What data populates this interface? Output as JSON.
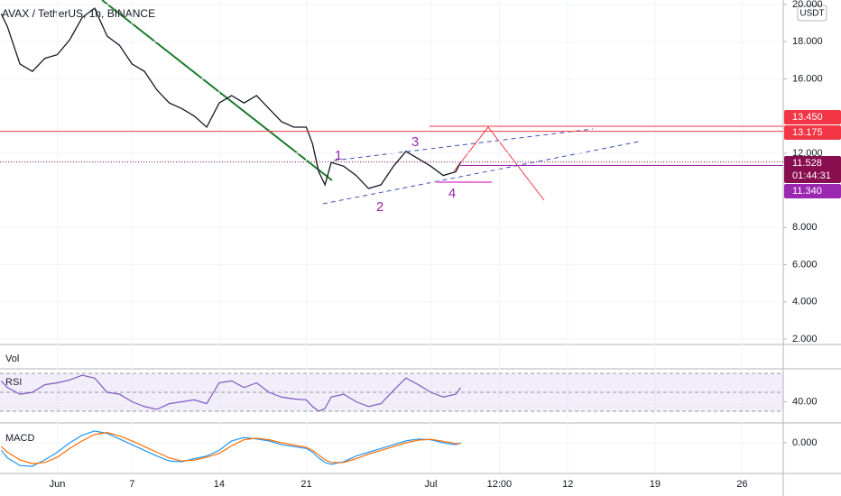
{
  "chart_data": [
    {
      "type": "line",
      "title": "AVAX / TetherUS, 1h, BINANCE",
      "currency": "USDT",
      "x": [
        -3.5,
        -3,
        -2,
        -1,
        0,
        1,
        2,
        3,
        4,
        5,
        6,
        7,
        8,
        9,
        10,
        11,
        12,
        13,
        14,
        15,
        16,
        17,
        18,
        19,
        20,
        21,
        21.5,
        22,
        22.5,
        23,
        24,
        25,
        26,
        27,
        28,
        29,
        30,
        31,
        32,
        33,
        33.4
      ],
      "series": [
        {
          "color": "#131722",
          "values": [
            19.5,
            18.8,
            16.8,
            16.4,
            17.1,
            17.3,
            18.1,
            19.3,
            19.8,
            18.3,
            17.8,
            16.8,
            16.4,
            15.4,
            14.7,
            14.4,
            14.0,
            13.4,
            14.7,
            15.1,
            14.7,
            15.1,
            14.4,
            13.7,
            13.4,
            13.4,
            12.5,
            11.0,
            10.3,
            11.5,
            11.3,
            10.8,
            10.1,
            10.3,
            11.3,
            12.1,
            11.7,
            11.3,
            10.8,
            11.0,
            11.528
          ]
        }
      ],
      "xlim": [
        -3.6,
        59.3
      ],
      "xticks": [
        {
          "value": 1,
          "label": "Jun"
        },
        7,
        14,
        21,
        {
          "value": 31,
          "label": "Jul"
        },
        {
          "value": 36.5,
          "label": "12:00"
        },
        {
          "value": 42,
          "label": "12"
        },
        {
          "value": 49,
          "label": "19"
        },
        {
          "value": 56,
          "label": "26"
        }
      ],
      "ylim": [
        1.71,
        20.24
      ],
      "yticks": [
        {
          "value": 2,
          "label": "2.000"
        },
        {
          "value": 4,
          "label": "4.000"
        },
        {
          "value": 6,
          "label": "6.000"
        },
        {
          "value": 8,
          "label": "8.000"
        },
        {
          "value": 12,
          "label": "12.000"
        },
        {
          "value": 16,
          "label": "16.000"
        },
        {
          "value": 18,
          "label": "18.000"
        },
        {
          "value": 20,
          "label": "20.000"
        }
      ],
      "price_labels": [
        {
          "value": 13.45,
          "label": "13.450",
          "color": "#f23645"
        },
        {
          "value": 13.175,
          "label": "13.175",
          "color": "#f23645"
        },
        {
          "value": 11.528,
          "label": "11.528",
          "color": "#880e4f",
          "countdown": "01:44:31"
        },
        {
          "value": 11.34,
          "label": "11.340",
          "color": "#9c27b0"
        }
      ],
      "annotations": [
        "1",
        "2",
        "3",
        "4"
      ]
    },
    {
      "type": "line",
      "title": "Vol"
    },
    {
      "type": "line",
      "title": "RSI",
      "series": [
        {
          "color": "#7e57c2",
          "values": [
            62,
            55,
            48,
            50,
            58,
            60,
            63,
            68,
            65,
            50,
            48,
            40,
            35,
            32,
            38,
            40,
            42,
            38,
            60,
            62,
            55,
            60,
            50,
            45,
            43,
            42,
            35,
            30,
            33,
            45,
            48,
            40,
            35,
            38,
            52,
            65,
            58,
            50,
            45,
            48,
            55
          ]
        }
      ],
      "ylim": [
        18.6,
        73.8
      ],
      "yticks": [
        {
          "value": 40,
          "label": "40.00"
        }
      ],
      "bands": [
        30,
        50,
        70
      ]
    },
    {
      "type": "line",
      "title": "MACD",
      "series": [
        {
          "color": "#2196f3",
          "values": [
            -0.2,
            -0.4,
            -0.6,
            -0.62,
            -0.45,
            -0.25,
            0.0,
            0.2,
            0.31,
            0.25,
            0.1,
            -0.05,
            -0.2,
            -0.35,
            -0.48,
            -0.5,
            -0.42,
            -0.35,
            -0.2,
            0.05,
            0.14,
            0.1,
            0.05,
            -0.05,
            -0.1,
            -0.15,
            -0.25,
            -0.4,
            -0.52,
            -0.57,
            -0.5,
            -0.35,
            -0.25,
            -0.15,
            -0.05,
            0.05,
            0.1,
            0.08,
            0.0,
            -0.05,
            0.0
          ]
        },
        {
          "color": "#ff6d00",
          "values": [
            -0.1,
            -0.25,
            -0.45,
            -0.55,
            -0.52,
            -0.38,
            -0.15,
            0.05,
            0.22,
            0.27,
            0.18,
            0.05,
            -0.1,
            -0.25,
            -0.4,
            -0.48,
            -0.46,
            -0.38,
            -0.28,
            -0.08,
            0.08,
            0.12,
            0.08,
            0.0,
            -0.06,
            -0.12,
            -0.2,
            -0.32,
            -0.45,
            -0.52,
            -0.52,
            -0.42,
            -0.3,
            -0.2,
            -0.1,
            0.0,
            0.07,
            0.09,
            0.04,
            -0.02,
            -0.02
          ]
        }
      ],
      "ylim": [
        -0.786,
        0.5
      ],
      "yticks": [
        {
          "value": 0,
          "label": "0.000"
        }
      ]
    }
  ]
}
